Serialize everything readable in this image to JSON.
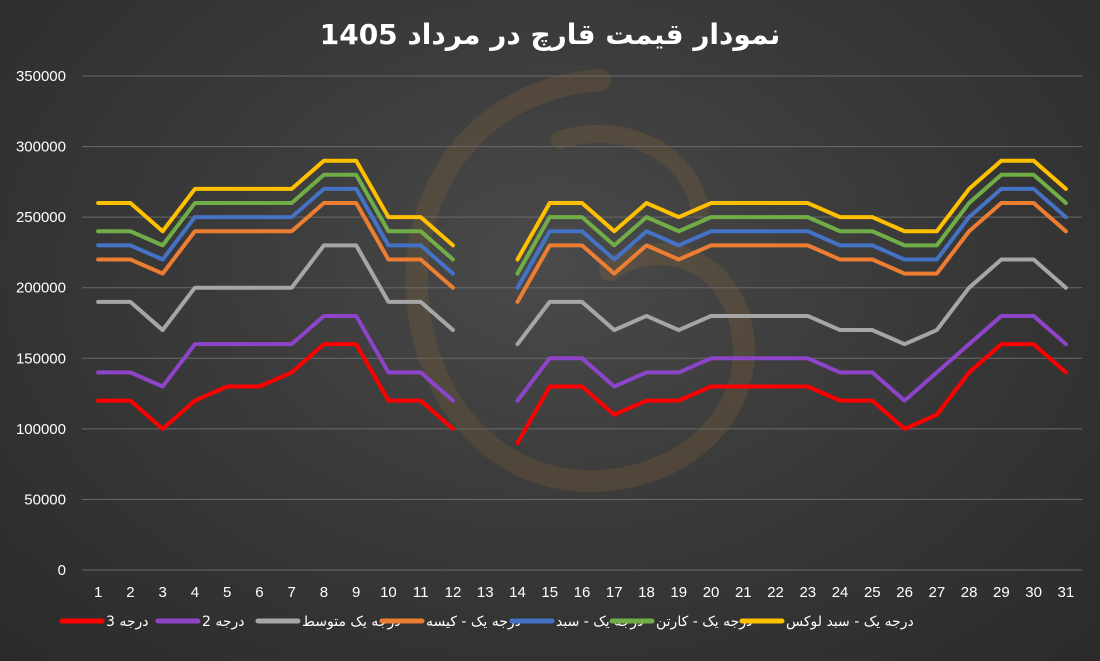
{
  "chart_data": {
    "type": "line",
    "title": "نمودار قیمت قارچ در مرداد 1405",
    "xlabel": "",
    "ylabel": "",
    "ylim": [
      0,
      350000
    ],
    "yticks": [
      0,
      50000,
      100000,
      150000,
      200000,
      250000,
      300000,
      350000
    ],
    "ytick_labels": [
      "0",
      "50000",
      "100000",
      "150000",
      "200000",
      "250000",
      "300000",
      "350000"
    ],
    "grid": true,
    "legend_position": "bottom",
    "categories": [
      "1",
      "2",
      "3",
      "4",
      "5",
      "6",
      "7",
      "8",
      "9",
      "10",
      "11",
      "12",
      "13",
      "14",
      "15",
      "16",
      "17",
      "18",
      "19",
      "20",
      "21",
      "22",
      "23",
      "24",
      "25",
      "26",
      "27",
      "28",
      "29",
      "30",
      "31"
    ],
    "series": [
      {
        "name": "درجه 3",
        "color": "#ff0000",
        "values": [
          120000,
          120000,
          100000,
          120000,
          130000,
          130000,
          140000,
          160000,
          160000,
          120000,
          120000,
          100000,
          null,
          90000,
          130000,
          130000,
          110000,
          120000,
          120000,
          130000,
          130000,
          130000,
          130000,
          120000,
          120000,
          100000,
          110000,
          140000,
          160000,
          160000,
          140000
        ]
      },
      {
        "name": "درجه 2",
        "color": "#8e44c9",
        "values": [
          140000,
          140000,
          130000,
          160000,
          160000,
          160000,
          160000,
          180000,
          180000,
          140000,
          140000,
          120000,
          null,
          120000,
          150000,
          150000,
          130000,
          140000,
          140000,
          150000,
          150000,
          150000,
          150000,
          140000,
          140000,
          120000,
          140000,
          160000,
          180000,
          180000,
          160000
        ]
      },
      {
        "name": "درجه یک متوسط",
        "color": "#a6a6a6",
        "values": [
          190000,
          190000,
          170000,
          200000,
          200000,
          200000,
          200000,
          230000,
          230000,
          190000,
          190000,
          170000,
          null,
          160000,
          190000,
          190000,
          170000,
          180000,
          170000,
          180000,
          180000,
          180000,
          180000,
          170000,
          170000,
          160000,
          170000,
          200000,
          220000,
          220000,
          200000
        ]
      },
      {
        "name": "درجه یک - کیسه",
        "color": "#ed7d31",
        "values": [
          220000,
          220000,
          210000,
          240000,
          240000,
          240000,
          240000,
          260000,
          260000,
          220000,
          220000,
          200000,
          null,
          190000,
          230000,
          230000,
          210000,
          230000,
          220000,
          230000,
          230000,
          230000,
          230000,
          220000,
          220000,
          210000,
          210000,
          240000,
          260000,
          260000,
          240000
        ]
      },
      {
        "name": "درجه یک - سبد",
        "color": "#4472c4",
        "values": [
          230000,
          230000,
          220000,
          250000,
          250000,
          250000,
          250000,
          270000,
          270000,
          230000,
          230000,
          210000,
          null,
          200000,
          240000,
          240000,
          220000,
          240000,
          230000,
          240000,
          240000,
          240000,
          240000,
          230000,
          230000,
          220000,
          220000,
          250000,
          270000,
          270000,
          250000
        ]
      },
      {
        "name": "درجه یک - کارتن",
        "color": "#70ad47",
        "values": [
          240000,
          240000,
          230000,
          260000,
          260000,
          260000,
          260000,
          280000,
          280000,
          240000,
          240000,
          220000,
          null,
          210000,
          250000,
          250000,
          230000,
          250000,
          240000,
          250000,
          250000,
          250000,
          250000,
          240000,
          240000,
          230000,
          230000,
          260000,
          280000,
          280000,
          260000
        ]
      },
      {
        "name": "درجه یک - سبد لوکس",
        "color": "#ffc000",
        "values": [
          260000,
          260000,
          240000,
          270000,
          270000,
          270000,
          270000,
          290000,
          290000,
          250000,
          250000,
          230000,
          null,
          220000,
          260000,
          260000,
          240000,
          260000,
          250000,
          260000,
          260000,
          260000,
          260000,
          250000,
          250000,
          240000,
          240000,
          270000,
          290000,
          290000,
          270000
        ]
      }
    ]
  }
}
